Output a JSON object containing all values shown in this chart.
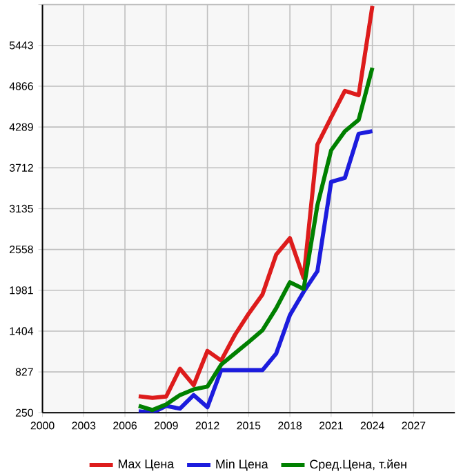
{
  "chart_data": {
    "type": "line",
    "x": [
      2007,
      2008,
      2009,
      2010,
      2011,
      2012,
      2013,
      2014,
      2015,
      2016,
      2017,
      2018,
      2019,
      2020,
      2021,
      2022,
      2023,
      2024
    ],
    "series": [
      {
        "name": "Max Цена",
        "color": "#dd1c1c",
        "values": [
          483,
          460,
          480,
          872,
          639,
          1124,
          988,
          1350,
          1650,
          1920,
          2484,
          2718,
          2154,
          4040,
          4425,
          4800,
          4740,
          6000
        ]
      },
      {
        "name": "Min Цена",
        "color": "#1c1cdd",
        "values": [
          270,
          250,
          347,
          308,
          500,
          328,
          852,
          852,
          852,
          852,
          1085,
          1630,
          1960,
          2250,
          3514,
          3570,
          4194,
          4230
        ]
      },
      {
        "name": "Сред.Цена, т.йен",
        "color": "#008000",
        "values": [
          347,
          289,
          367,
          500,
          580,
          620,
          930,
          1090,
          1250,
          1416,
          1727,
          2095,
          2000,
          3184,
          3960,
          4230,
          4390,
          5127
        ]
      }
    ],
    "xlim": [
      2000,
      2030
    ],
    "xticks": [
      2000,
      2003,
      2006,
      2009,
      2012,
      2015,
      2018,
      2021,
      2024,
      2027
    ],
    "ylim": [
      250,
      6020
    ],
    "yticks": [
      250,
      827,
      1404,
      1981,
      2558,
      3135,
      3712,
      4289,
      4866,
      5443,
      {
        "value": 6020,
        "label": null
      }
    ],
    "grid": true,
    "legend": "bottom",
    "marker": "none",
    "line_style": "solid"
  }
}
